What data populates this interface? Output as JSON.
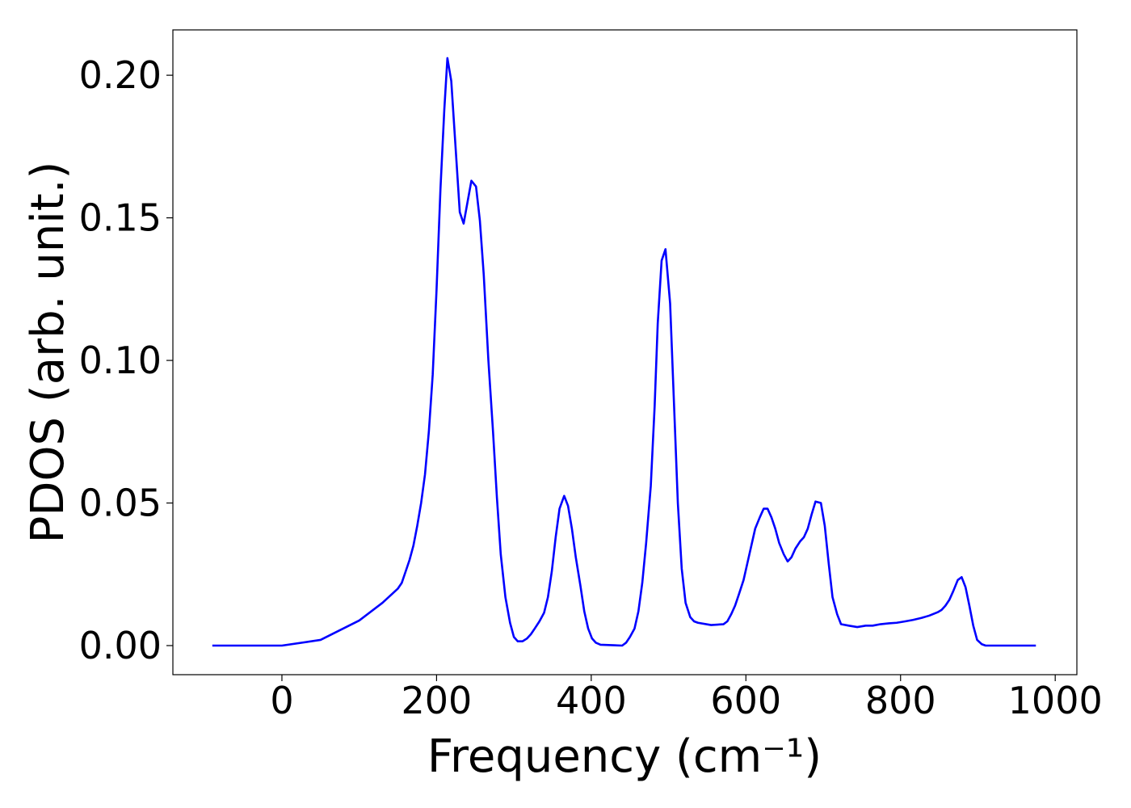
{
  "chart_data": {
    "type": "line",
    "xlabel": "Frequency (cm⁻¹)",
    "ylabel": "PDOS (arb. unit.)",
    "xlim": [
      -141,
      1028
    ],
    "ylim": [
      -0.0102,
      0.2159
    ],
    "xticks": [
      0,
      200,
      400,
      600,
      800,
      1000
    ],
    "yticks": [
      {
        "value": 0,
        "label": "0.00"
      },
      {
        "value": 0.05,
        "label": "0.05"
      },
      {
        "value": 0.1,
        "label": "0.10"
      },
      {
        "value": 0.15,
        "label": "0.15"
      },
      {
        "value": 0.2,
        "label": "0.20"
      }
    ],
    "x": [
      -90,
      0,
      50,
      100,
      130,
      150,
      155,
      160,
      165,
      170,
      175,
      180,
      185,
      190,
      195,
      200,
      205,
      210,
      214,
      219,
      230,
      235,
      245,
      251,
      256,
      261,
      267,
      273,
      278,
      283,
      289,
      295,
      300,
      305,
      311,
      317,
      322,
      327,
      333,
      339,
      344,
      349,
      354,
      359,
      365,
      370,
      375,
      380,
      386,
      391,
      396,
      401,
      406,
      412,
      440,
      445,
      450,
      456,
      461,
      466,
      471,
      477,
      482,
      486,
      491,
      496,
      502,
      507,
      512,
      517,
      522,
      528,
      533,
      538,
      555,
      571,
      576,
      581,
      586,
      591,
      597,
      602,
      607,
      612,
      618,
      623,
      628,
      633,
      638,
      643,
      649,
      654,
      659,
      664,
      670,
      675,
      680,
      685,
      690,
      697,
      702,
      707,
      712,
      718,
      723,
      733,
      744,
      755,
      764,
      774,
      785,
      795,
      806,
      816,
      827,
      837,
      848,
      853,
      858,
      863,
      868,
      874,
      879,
      884,
      889,
      894,
      899,
      905,
      910,
      975
    ],
    "series": [
      {
        "name": "PDOS",
        "color": "#0000ff",
        "values": [
          0,
          0,
          0.002,
          0.0088,
          0.015,
          0.02,
          0.022,
          0.026,
          0.03,
          0.035,
          0.042,
          0.05,
          0.06,
          0.075,
          0.095,
          0.125,
          0.16,
          0.188,
          0.206,
          0.198,
          0.152,
          0.148,
          0.163,
          0.161,
          0.149,
          0.13,
          0.1,
          0.075,
          0.052,
          0.032,
          0.017,
          0.008,
          0.003,
          0.0015,
          0.0015,
          0.0025,
          0.004,
          0.006,
          0.0085,
          0.0115,
          0.017,
          0.026,
          0.038,
          0.048,
          0.0525,
          0.049,
          0.041,
          0.031,
          0.021,
          0.012,
          0.006,
          0.0025,
          0.001,
          0.0003,
          0,
          0.001,
          0.003,
          0.006,
          0.012,
          0.022,
          0.036,
          0.056,
          0.084,
          0.113,
          0.135,
          0.139,
          0.12,
          0.085,
          0.05,
          0.027,
          0.015,
          0.01,
          0.0085,
          0.008,
          0.0072,
          0.0075,
          0.0085,
          0.011,
          0.014,
          0.018,
          0.023,
          0.029,
          0.035,
          0.041,
          0.045,
          0.048,
          0.048,
          0.045,
          0.041,
          0.036,
          0.032,
          0.0295,
          0.031,
          0.034,
          0.0365,
          0.038,
          0.041,
          0.046,
          0.0505,
          0.05,
          0.042,
          0.029,
          0.017,
          0.011,
          0.0075,
          0.007,
          0.0065,
          0.007,
          0.007,
          0.0075,
          0.0078,
          0.008,
          0.0085,
          0.009,
          0.0097,
          0.0105,
          0.0117,
          0.0125,
          0.014,
          0.016,
          0.019,
          0.023,
          0.024,
          0.0205,
          0.014,
          0.007,
          0.002,
          0.0005,
          0,
          0
        ]
      }
    ]
  }
}
